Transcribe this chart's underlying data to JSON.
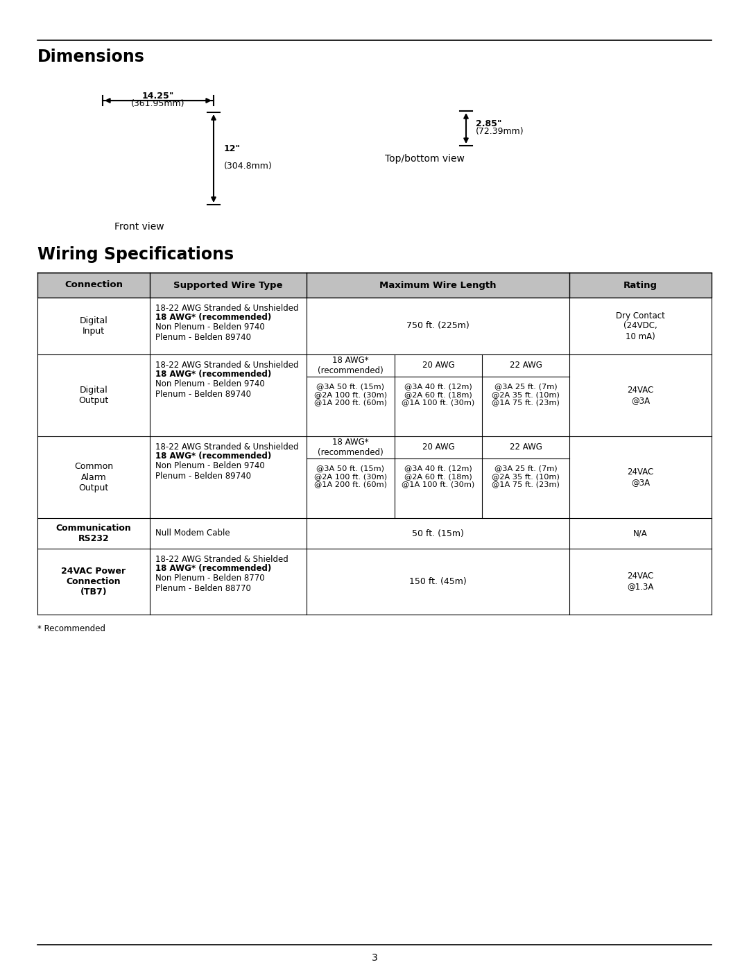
{
  "title_dimensions": "Dimensions",
  "title_wiring": "Wiring Specifications",
  "dim_width_in": "14.25\"",
  "dim_width_mm": "(361.95mm)",
  "dim_height_in": "12\"",
  "dim_height_mm": "(304.8mm)",
  "dim_depth_in": "2.85\"",
  "dim_depth_mm": "(72.39mm)",
  "front_view_label": "Front view",
  "top_bottom_view_label": "Top/bottom view",
  "footnote": "* Recommended",
  "page_number": "3",
  "bg_color": "#ffffff",
  "table_headers": [
    "Connection",
    "Supported Wire Type",
    "Maximum Wire Length",
    "Rating"
  ],
  "table_rows": [
    {
      "connection": "Digital\nInput",
      "wire_type_line1": "18-22 AWG Stranded & Unshielded",
      "wire_type_bold": "18 AWG* (recommended)",
      "wire_type_line3": "Non Plenum - Belden 9740",
      "wire_type_line4": "Plenum - Belden 89740",
      "max_length_single": "750 ft. (225m)",
      "max_length_sub": null,
      "rating": "Dry Contact\n(24VDC,\n10 mA)",
      "conn_bold": false
    },
    {
      "connection": "Digital\nOutput",
      "wire_type_line1": "18-22 AWG Stranded & Unshielded",
      "wire_type_bold": "18 AWG* (recommended)",
      "wire_type_line3": "Non Plenum - Belden 9740",
      "wire_type_line4": "Plenum - Belden 89740",
      "max_length_single": null,
      "max_length_sub": {
        "col1_header": "18 AWG*\n(recommended)",
        "col2_header": "20 AWG",
        "col3_header": "22 AWG",
        "col1_data": "@3A 50 ft. (15m)\n@2A 100 ft. (30m)\n@1A 200 ft. (60m)",
        "col2_data": "@3A 40 ft. (12m)\n@2A 60 ft. (18m)\n@1A 100 ft. (30m)",
        "col3_data": "@3A 25 ft. (7m)\n@2A 35 ft. (10m)\n@1A 75 ft. (23m)"
      },
      "rating": "24VAC\n@3A",
      "conn_bold": false
    },
    {
      "connection": "Common\nAlarm\nOutput",
      "wire_type_line1": "18-22 AWG Stranded & Unshielded",
      "wire_type_bold": "18 AWG* (recommended)",
      "wire_type_line3": "Non Plenum - Belden 9740",
      "wire_type_line4": "Plenum - Belden 89740",
      "max_length_single": null,
      "max_length_sub": {
        "col1_header": "18 AWG*\n(recommended)",
        "col2_header": "20 AWG",
        "col3_header": "22 AWG",
        "col1_data": "@3A 50 ft. (15m)\n@2A 100 ft. (30m)\n@1A 200 ft. (60m)",
        "col2_data": "@3A 40 ft. (12m)\n@2A 60 ft. (18m)\n@1A 100 ft. (30m)",
        "col3_data": "@3A 25 ft. (7m)\n@2A 35 ft. (10m)\n@1A 75 ft. (23m)"
      },
      "rating": "24VAC\n@3A",
      "conn_bold": false
    },
    {
      "connection": "Communication\nRS232",
      "wire_type_line1": "Null Modem Cable",
      "wire_type_bold": null,
      "wire_type_line3": "",
      "wire_type_line4": "",
      "max_length_single": "50 ft. (15m)",
      "max_length_sub": null,
      "rating": "N/A",
      "conn_bold": true
    },
    {
      "connection": "24VAC Power\nConnection\n(TB7)",
      "wire_type_line1": "18-22 AWG Stranded & Shielded",
      "wire_type_bold": "18 AWG* (recommended)",
      "wire_type_line3": "Non Plenum - Belden 8770",
      "wire_type_line4": "Plenum - Belden 88770",
      "max_length_single": "150 ft. (45m)",
      "max_length_sub": null,
      "rating": "24VAC\n@1.3A",
      "conn_bold": true
    }
  ]
}
